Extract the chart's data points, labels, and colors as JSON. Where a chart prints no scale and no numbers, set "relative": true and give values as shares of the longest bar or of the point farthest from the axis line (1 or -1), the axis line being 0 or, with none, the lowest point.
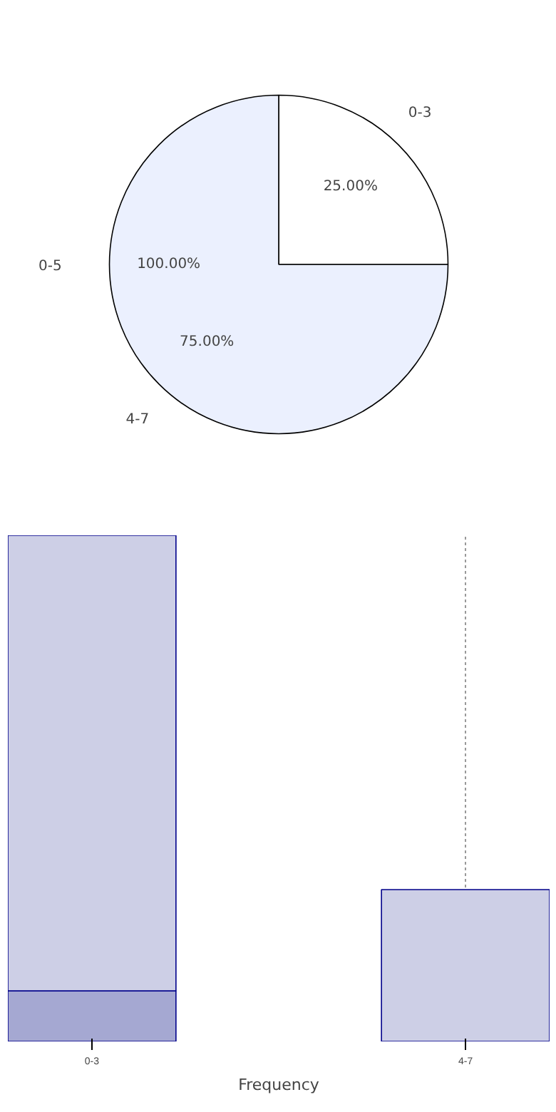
{
  "chart_data": [
    {
      "type": "pie",
      "categories": [
        "0-3",
        "4-7"
      ],
      "values": [
        25,
        75
      ],
      "colors": [
        "#ffffff",
        "#ebf0fe"
      ],
      "value_labels": [
        "25.00%",
        "75.00%"
      ],
      "annotations": [
        "0-5",
        "100.00%"
      ]
    },
    {
      "type": "bar",
      "categories": [
        "0-3",
        "4-7"
      ],
      "relative": true,
      "stacked": true,
      "grid": "x",
      "xlabel": "Frequency",
      "series": [
        {
          "color": "#a5a8d2",
          "values": [
            0.1,
            0
          ]
        },
        {
          "color": "#cdcfe6",
          "values": [
            0.9,
            0.3
          ]
        }
      ]
    }
  ]
}
